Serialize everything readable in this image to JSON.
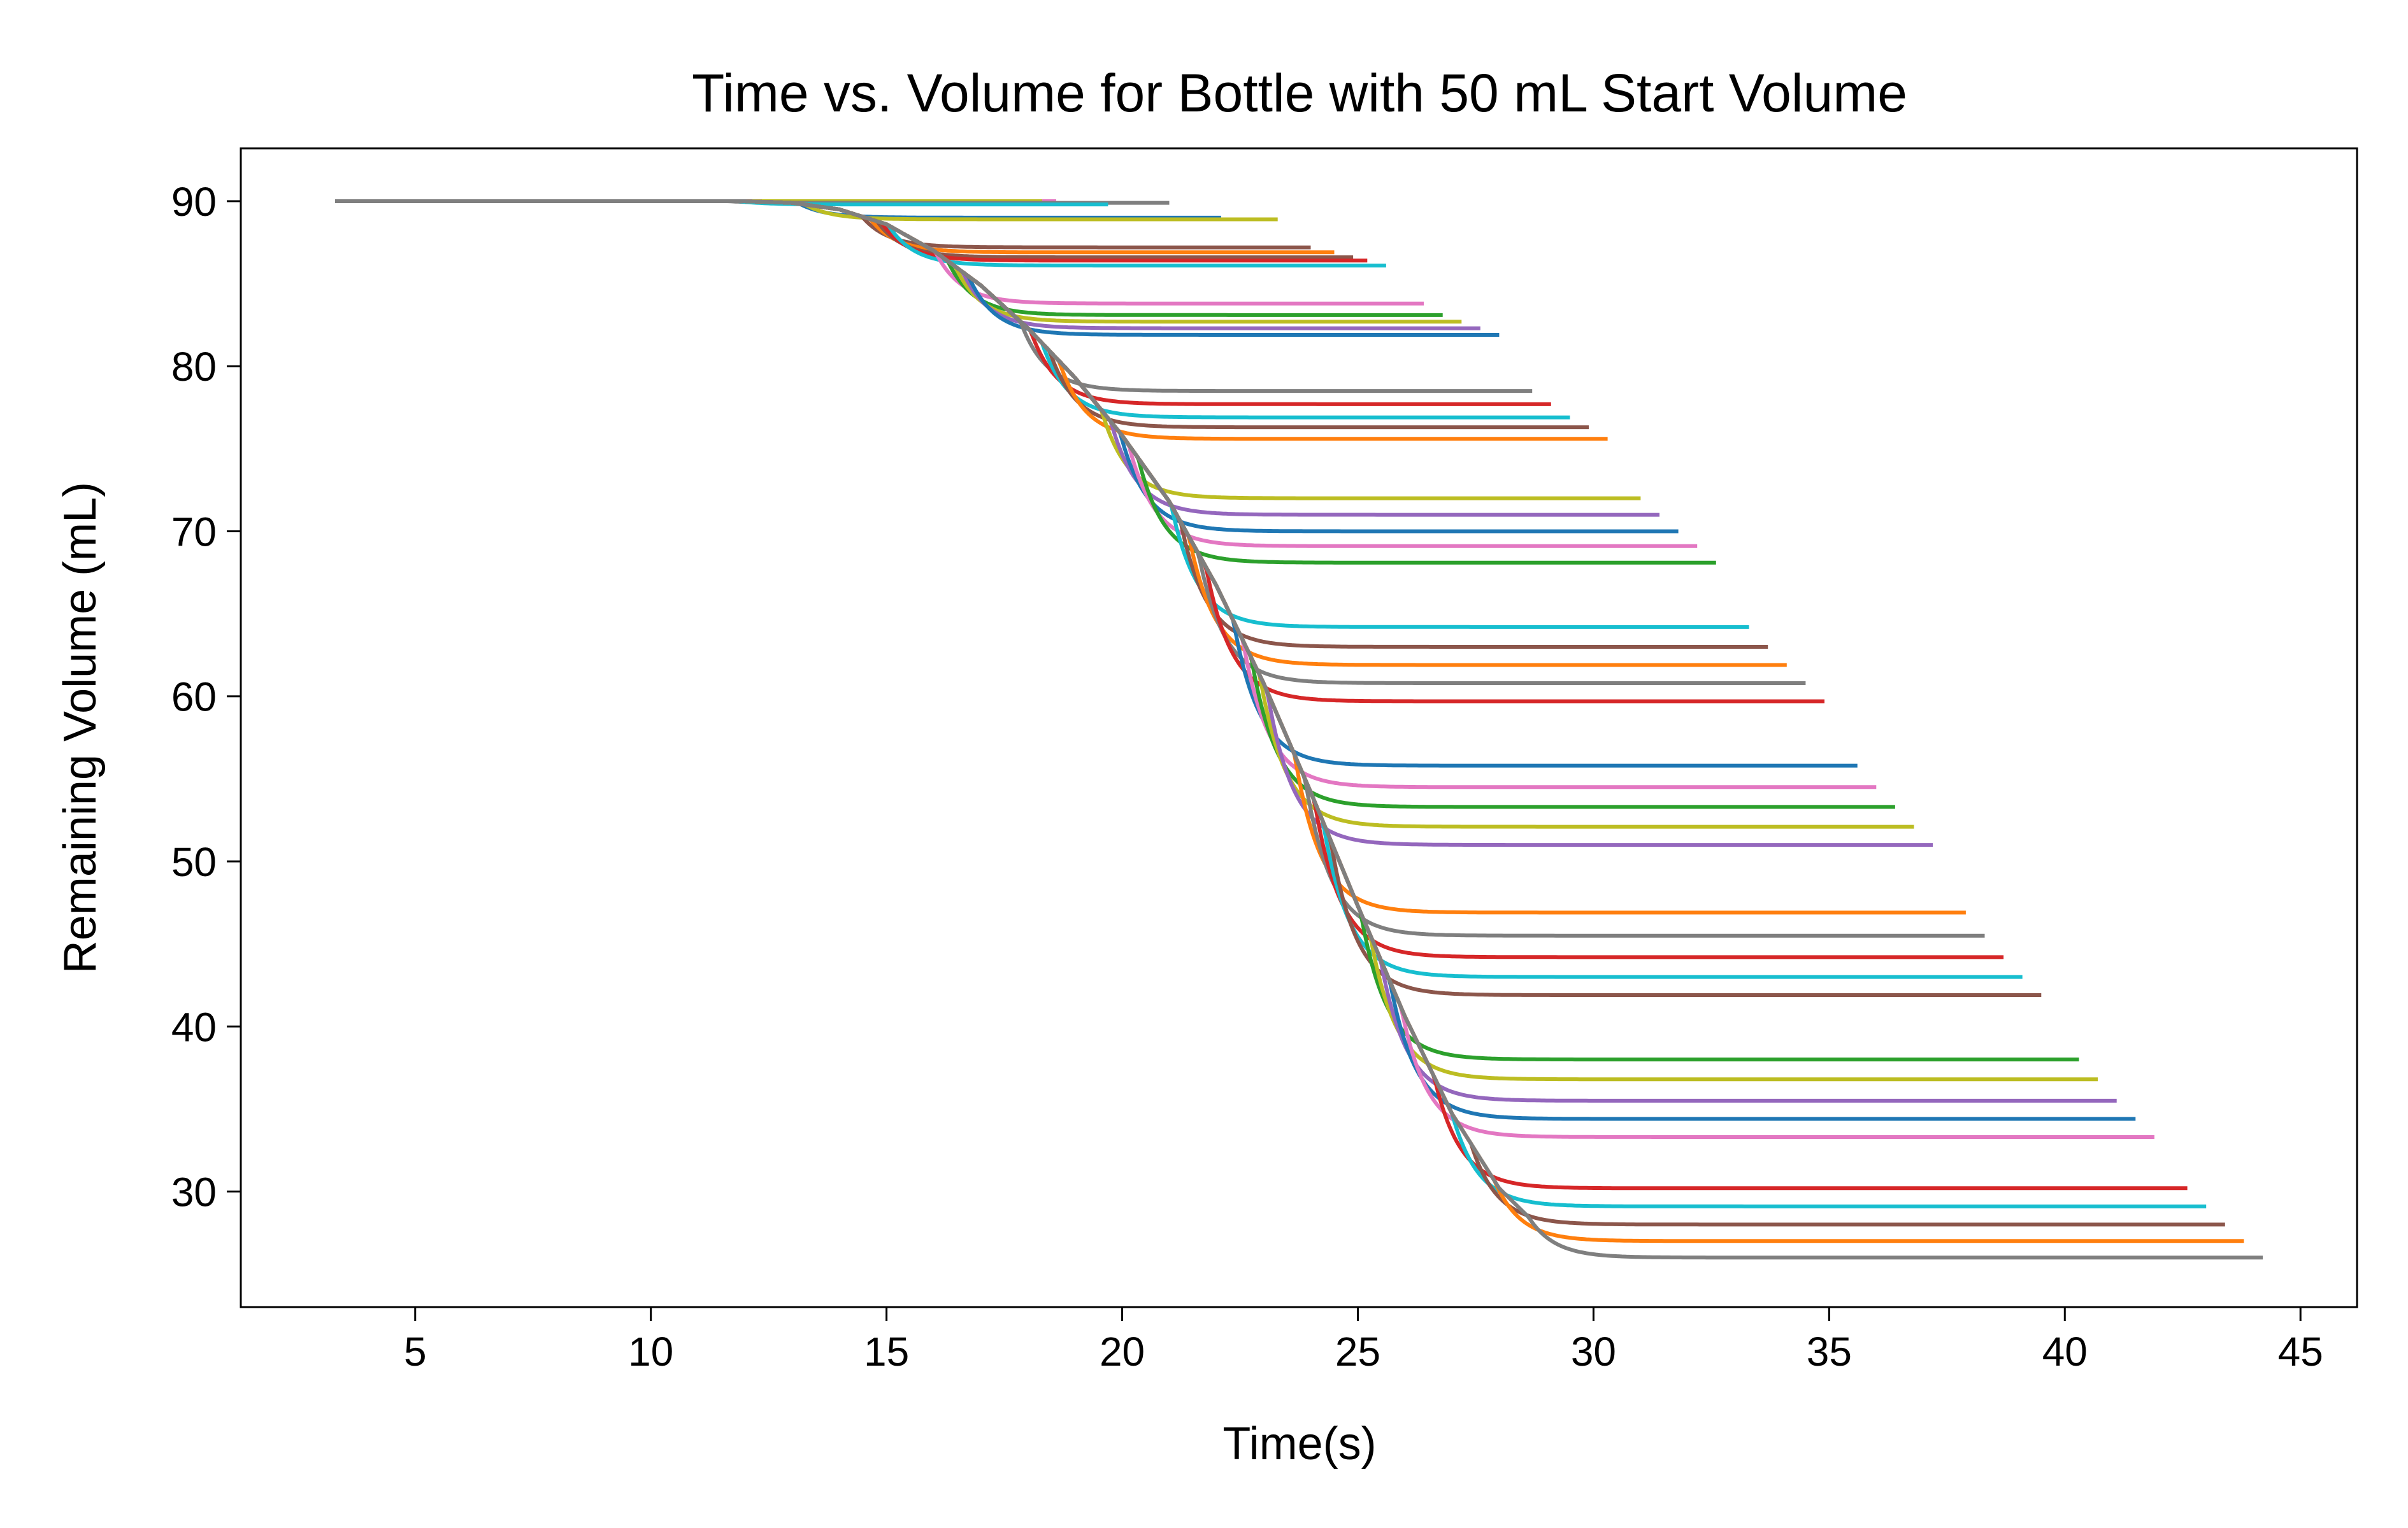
{
  "chart_data": {
    "type": "line",
    "title": "Time vs. Volume for Bottle with 50 mL Start Volume",
    "xlabel": "Time(s)",
    "ylabel": "Remaining Volume (mL)",
    "xlim": [
      1.3,
      46.2
    ],
    "ylim": [
      23.0,
      93.2
    ],
    "xticks": [
      5,
      10,
      15,
      20,
      25,
      30,
      35,
      40,
      45
    ],
    "yticks": [
      30,
      40,
      50,
      60,
      70,
      80,
      90
    ],
    "grid": false,
    "legend": "none",
    "model": {
      "start_time": 3.3,
      "start_volume": 90.0,
      "master_curve_points": [
        [
          3.3,
          90
        ],
        [
          12,
          90
        ],
        [
          13,
          89.9
        ],
        [
          14,
          89.5
        ],
        [
          15,
          88.6
        ],
        [
          16,
          87.0
        ],
        [
          17,
          84.9
        ],
        [
          18,
          82.3
        ],
        [
          19,
          79.3
        ],
        [
          20,
          75.8
        ],
        [
          21,
          71.8
        ],
        [
          22,
          66.7
        ],
        [
          23,
          60.8
        ],
        [
          24,
          54.2
        ],
        [
          25,
          47.3
        ],
        [
          26,
          40.6
        ],
        [
          27,
          34.7
        ],
        [
          28,
          30.2
        ],
        [
          29,
          27.4
        ],
        [
          30,
          26.0
        ]
      ]
    },
    "series": [
      {
        "name": "s1",
        "plateau": 90.0,
        "end_time": 18.6,
        "color": "#e377c2"
      },
      {
        "name": "s2",
        "plateau": 90.0,
        "end_time": 18.3,
        "color": "#bcbd22"
      },
      {
        "name": "s3",
        "plateau": 89.9,
        "end_time": 21.0,
        "color": "#7f7f7f"
      },
      {
        "name": "s4",
        "plateau": 89.8,
        "end_time": 19.7,
        "color": "#17becf"
      },
      {
        "name": "s5",
        "plateau": 89.0,
        "end_time": 22.1,
        "color": "#1f77b4"
      },
      {
        "name": "s6",
        "plateau": 88.9,
        "end_time": 23.3,
        "color": "#bcbd22"
      },
      {
        "name": "s7",
        "plateau": 87.2,
        "end_time": 24.0,
        "color": "#8c564b"
      },
      {
        "name": "s8",
        "plateau": 86.9,
        "end_time": 24.5,
        "color": "#ff7f0e"
      },
      {
        "name": "s9",
        "plateau": 86.6,
        "end_time": 24.9,
        "color": "#8c564b"
      },
      {
        "name": "s10",
        "plateau": 86.4,
        "end_time": 25.2,
        "color": "#d62728"
      },
      {
        "name": "s11",
        "plateau": 86.1,
        "end_time": 25.6,
        "color": "#17becf"
      },
      {
        "name": "s12",
        "plateau": 83.8,
        "end_time": 26.4,
        "color": "#e377c2"
      },
      {
        "name": "s13",
        "plateau": 83.1,
        "end_time": 26.8,
        "color": "#2ca02c"
      },
      {
        "name": "s14",
        "plateau": 82.7,
        "end_time": 27.2,
        "color": "#bcbd22"
      },
      {
        "name": "s15",
        "plateau": 82.3,
        "end_time": 27.6,
        "color": "#9467bd"
      },
      {
        "name": "s16",
        "plateau": 81.9,
        "end_time": 28.0,
        "color": "#1f77b4"
      },
      {
        "name": "s17",
        "plateau": 78.5,
        "end_time": 28.7,
        "color": "#7f7f7f"
      },
      {
        "name": "s18",
        "plateau": 77.7,
        "end_time": 29.1,
        "color": "#d62728"
      },
      {
        "name": "s19",
        "plateau": 76.9,
        "end_time": 29.5,
        "color": "#17becf"
      },
      {
        "name": "s20",
        "plateau": 76.3,
        "end_time": 29.9,
        "color": "#8c564b"
      },
      {
        "name": "s21",
        "plateau": 75.6,
        "end_time": 30.3,
        "color": "#ff7f0e"
      },
      {
        "name": "s22",
        "plateau": 72.0,
        "end_time": 31.0,
        "color": "#bcbd22"
      },
      {
        "name": "s23",
        "plateau": 71.0,
        "end_time": 31.4,
        "color": "#9467bd"
      },
      {
        "name": "s24",
        "plateau": 70.0,
        "end_time": 31.8,
        "color": "#1f77b4"
      },
      {
        "name": "s25",
        "plateau": 69.1,
        "end_time": 32.2,
        "color": "#e377c2"
      },
      {
        "name": "s26",
        "plateau": 68.1,
        "end_time": 32.6,
        "color": "#2ca02c"
      },
      {
        "name": "s27",
        "plateau": 64.2,
        "end_time": 33.3,
        "color": "#17becf"
      },
      {
        "name": "s28",
        "plateau": 63.0,
        "end_time": 33.7,
        "color": "#8c564b"
      },
      {
        "name": "s29",
        "plateau": 61.9,
        "end_time": 34.1,
        "color": "#ff7f0e"
      },
      {
        "name": "s30",
        "plateau": 60.8,
        "end_time": 34.5,
        "color": "#7f7f7f"
      },
      {
        "name": "s31",
        "plateau": 59.7,
        "end_time": 34.9,
        "color": "#d62728"
      },
      {
        "name": "s32",
        "plateau": 55.8,
        "end_time": 35.6,
        "color": "#1f77b4"
      },
      {
        "name": "s33",
        "plateau": 54.5,
        "end_time": 36.0,
        "color": "#e377c2"
      },
      {
        "name": "s34",
        "plateau": 53.3,
        "end_time": 36.4,
        "color": "#2ca02c"
      },
      {
        "name": "s35",
        "plateau": 52.1,
        "end_time": 36.8,
        "color": "#bcbd22"
      },
      {
        "name": "s36",
        "plateau": 51.0,
        "end_time": 37.2,
        "color": "#9467bd"
      },
      {
        "name": "s37",
        "plateau": 46.9,
        "end_time": 37.9,
        "color": "#ff7f0e"
      },
      {
        "name": "s38",
        "plateau": 45.5,
        "end_time": 38.3,
        "color": "#7f7f7f"
      },
      {
        "name": "s39",
        "plateau": 44.2,
        "end_time": 38.7,
        "color": "#d62728"
      },
      {
        "name": "s40",
        "plateau": 43.0,
        "end_time": 39.1,
        "color": "#17becf"
      },
      {
        "name": "s41",
        "plateau": 41.9,
        "end_time": 39.5,
        "color": "#8c564b"
      },
      {
        "name": "s42",
        "plateau": 38.0,
        "end_time": 40.3,
        "color": "#2ca02c"
      },
      {
        "name": "s43",
        "plateau": 36.8,
        "end_time": 40.7,
        "color": "#bcbd22"
      },
      {
        "name": "s44",
        "plateau": 35.5,
        "end_time": 41.1,
        "color": "#9467bd"
      },
      {
        "name": "s45",
        "plateau": 34.4,
        "end_time": 41.5,
        "color": "#1f77b4"
      },
      {
        "name": "s46",
        "plateau": 33.3,
        "end_time": 41.9,
        "color": "#e377c2"
      },
      {
        "name": "s47",
        "plateau": 30.2,
        "end_time": 42.6,
        "color": "#d62728"
      },
      {
        "name": "s48",
        "plateau": 29.1,
        "end_time": 43.0,
        "color": "#17becf"
      },
      {
        "name": "s49",
        "plateau": 28.0,
        "end_time": 43.4,
        "color": "#8c564b"
      },
      {
        "name": "s50",
        "plateau": 27.0,
        "end_time": 43.8,
        "color": "#ff7f0e"
      },
      {
        "name": "s51",
        "plateau": 26.0,
        "end_time": 44.2,
        "color": "#7f7f7f"
      }
    ]
  }
}
